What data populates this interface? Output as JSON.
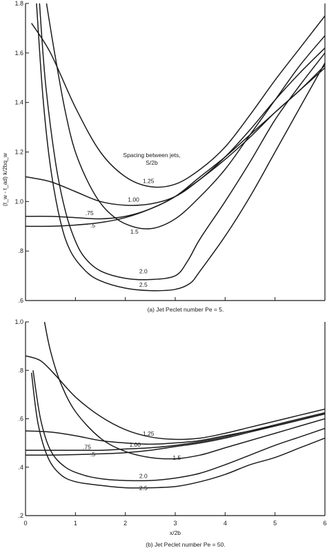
{
  "chart_data": [
    {
      "type": "line",
      "title": "",
      "caption": "(a) Jet Peclet number  Pe = 5.",
      "xlabel": "",
      "ylabel": "(t_w - t_ad) k/2bq_w",
      "xlim": [
        0,
        6
      ],
      "ylim": [
        0.6,
        1.8
      ],
      "x_ticks": [
        0,
        1,
        2,
        3,
        4,
        5,
        6
      ],
      "y_ticks": [
        0.6,
        0.8,
        1.0,
        1.2,
        1.4,
        1.6,
        1.8
      ],
      "y_tick_labels": [
        ".6",
        ".8",
        "1.0",
        "1.2",
        "1.4",
        "1.6",
        "1.8"
      ],
      "legend_title": [
        "Spacing between jets,",
        "S/2b"
      ],
      "series": [
        {
          "name": "1.25",
          "x": [
            0.12,
            0.5,
            1.0,
            1.5,
            2.0,
            2.5,
            3.0,
            3.5,
            4.0,
            4.5,
            5.0,
            5.5,
            6.0
          ],
          "y": [
            1.72,
            1.6,
            1.38,
            1.2,
            1.1,
            1.06,
            1.07,
            1.13,
            1.22,
            1.35,
            1.49,
            1.62,
            1.75
          ]
        },
        {
          "name": "1.00",
          "x": [
            0.0,
            0.5,
            1.0,
            1.5,
            2.0,
            2.5,
            3.0,
            3.5,
            4.0,
            4.5,
            5.0,
            5.5,
            6.0
          ],
          "y": [
            1.1,
            1.08,
            1.04,
            1.0,
            0.985,
            0.99,
            1.02,
            1.09,
            1.18,
            1.29,
            1.41,
            1.52,
            1.62
          ]
        },
        {
          "name": ".75",
          "x": [
            0.0,
            0.5,
            1.0,
            1.5,
            2.0,
            2.5,
            3.0,
            3.5,
            4.0,
            4.5,
            5.0,
            5.5,
            6.0
          ],
          "y": [
            0.94,
            0.94,
            0.935,
            0.93,
            0.94,
            0.97,
            1.02,
            1.09,
            1.17,
            1.26,
            1.36,
            1.45,
            1.55
          ]
        },
        {
          "name": ".5",
          "x": [
            0.0,
            0.5,
            1.0,
            1.5,
            2.0,
            2.5,
            3.0,
            3.5,
            4.0,
            4.5,
            5.0,
            5.5,
            6.0
          ],
          "y": [
            0.9,
            0.9,
            0.905,
            0.915,
            0.935,
            0.97,
            1.02,
            1.1,
            1.18,
            1.27,
            1.36,
            1.45,
            1.54
          ]
        },
        {
          "name": "1.5",
          "x": [
            0.42,
            0.6,
            0.8,
            1.0,
            1.3,
            1.6,
            2.0,
            2.5,
            3.0,
            3.5,
            4.0,
            4.5,
            5.0,
            5.5,
            6.0
          ],
          "y": [
            1.8,
            1.58,
            1.36,
            1.2,
            1.06,
            0.97,
            0.91,
            0.89,
            0.93,
            1.02,
            1.13,
            1.27,
            1.41,
            1.55,
            1.67
          ]
        },
        {
          "name": "2.0",
          "x": [
            0.28,
            0.4,
            0.6,
            0.8,
            1.0,
            1.2,
            1.5,
            2.0,
            2.5,
            3.0,
            3.25,
            3.5,
            4.0,
            4.5,
            5.0,
            5.5,
            6.0
          ],
          "y": [
            1.8,
            1.48,
            1.16,
            0.96,
            0.84,
            0.77,
            0.72,
            0.69,
            0.685,
            0.7,
            0.76,
            0.85,
            1.0,
            1.16,
            1.33,
            1.47,
            1.6
          ]
        },
        {
          "name": "2.5",
          "x": [
            0.22,
            0.35,
            0.5,
            0.7,
            0.9,
            1.2,
            1.5,
            2.0,
            2.5,
            3.0,
            3.3,
            3.5,
            4.0,
            4.5,
            5.0,
            5.5,
            6.0
          ],
          "y": [
            1.8,
            1.42,
            1.14,
            0.92,
            0.8,
            0.72,
            0.68,
            0.65,
            0.64,
            0.645,
            0.67,
            0.72,
            0.86,
            1.02,
            1.2,
            1.38,
            1.56
          ]
        }
      ],
      "series_label_positions": [
        {
          "name": "1.25",
          "x": 2.35,
          "y": 1.075
        },
        {
          "name": "1.00",
          "x": 2.05,
          "y": 1.0
        },
        {
          "name": ".75",
          "x": 1.2,
          "y": 0.945
        },
        {
          "name": ".5",
          "x": 1.3,
          "y": 0.895
        },
        {
          "name": "1.5",
          "x": 2.1,
          "y": 0.87
        },
        {
          "name": "2.0",
          "x": 2.28,
          "y": 0.71
        },
        {
          "name": "2.5",
          "x": 2.28,
          "y": 0.655
        }
      ]
    },
    {
      "type": "line",
      "title": "",
      "caption": "(b) Jet Peclet number  Pe = 50.",
      "xlabel": "x/2b",
      "ylabel": "",
      "xlim": [
        0,
        6
      ],
      "ylim": [
        0.2,
        1.0
      ],
      "x_ticks": [
        0,
        1,
        2,
        3,
        4,
        5,
        6
      ],
      "x_tick_labels": [
        "0",
        "1",
        "2",
        "3",
        "4",
        "5",
        "6"
      ],
      "y_ticks": [
        0.2,
        0.4,
        0.6,
        0.8,
        1.0
      ],
      "y_tick_labels": [
        ".2",
        ".4",
        ".6",
        ".8",
        "1.0"
      ],
      "series": [
        {
          "name": "1.25",
          "x": [
            0.0,
            0.3,
            0.6,
            1.0,
            1.5,
            2.0,
            2.5,
            3.0,
            3.5,
            4.0,
            4.5,
            5.0,
            5.5,
            6.0
          ],
          "y": [
            0.86,
            0.84,
            0.78,
            0.69,
            0.61,
            0.555,
            0.525,
            0.515,
            0.52,
            0.54,
            0.565,
            0.59,
            0.615,
            0.64
          ]
        },
        {
          "name": "1.00",
          "x": [
            0.0,
            0.5,
            1.0,
            1.5,
            2.0,
            2.5,
            3.0,
            3.5,
            4.0,
            4.5,
            5.0,
            5.5,
            6.0
          ],
          "y": [
            0.55,
            0.545,
            0.53,
            0.51,
            0.5,
            0.495,
            0.5,
            0.51,
            0.53,
            0.55,
            0.575,
            0.6,
            0.625
          ]
        },
        {
          "name": ".75",
          "x": [
            0.0,
            0.5,
            1.0,
            1.5,
            2.0,
            2.5,
            3.0,
            3.5,
            4.0,
            4.5,
            5.0,
            5.5,
            6.0
          ],
          "y": [
            0.47,
            0.47,
            0.47,
            0.47,
            0.475,
            0.48,
            0.49,
            0.505,
            0.525,
            0.55,
            0.57,
            0.595,
            0.62
          ]
        },
        {
          "name": ".5",
          "x": [
            0.0,
            0.5,
            1.0,
            1.5,
            2.0,
            2.5,
            3.0,
            3.5,
            4.0,
            4.5,
            5.0,
            5.5,
            6.0
          ],
          "y": [
            0.45,
            0.45,
            0.452,
            0.455,
            0.46,
            0.47,
            0.485,
            0.5,
            0.52,
            0.545,
            0.57,
            0.595,
            0.62
          ]
        },
        {
          "name": "1.5",
          "x": [
            0.38,
            0.5,
            0.7,
            1.0,
            1.5,
            2.0,
            2.5,
            3.0,
            3.5,
            4.0,
            4.5,
            5.0,
            5.5,
            6.0
          ],
          "y": [
            1.0,
            0.88,
            0.75,
            0.63,
            0.52,
            0.465,
            0.44,
            0.435,
            0.45,
            0.48,
            0.51,
            0.54,
            0.57,
            0.6
          ]
        },
        {
          "name": "2.0",
          "x": [
            0.15,
            0.3,
            0.5,
            0.8,
            1.2,
            1.6,
            2.0,
            2.5,
            3.0,
            3.5,
            4.0,
            4.5,
            5.0,
            5.5,
            6.0
          ],
          "y": [
            0.8,
            0.6,
            0.47,
            0.4,
            0.365,
            0.35,
            0.345,
            0.345,
            0.355,
            0.375,
            0.41,
            0.45,
            0.49,
            0.525,
            0.56
          ]
        },
        {
          "name": "2.5",
          "x": [
            0.12,
            0.25,
            0.45,
            0.7,
            1.0,
            1.5,
            2.0,
            2.5,
            3.0,
            3.5,
            4.0,
            4.5,
            5.0,
            5.5,
            6.0
          ],
          "y": [
            0.79,
            0.58,
            0.44,
            0.37,
            0.34,
            0.325,
            0.315,
            0.315,
            0.32,
            0.34,
            0.37,
            0.41,
            0.44,
            0.48,
            0.52
          ]
        }
      ],
      "series_label_positions": [
        {
          "name": "1.25",
          "x": 2.35,
          "y": 0.53
        },
        {
          "name": "1.00",
          "x": 2.08,
          "y": 0.485
        },
        {
          "name": ".75",
          "x": 1.15,
          "y": 0.475
        },
        {
          "name": ".5",
          "x": 1.3,
          "y": 0.445
        },
        {
          "name": "1.5",
          "x": 2.95,
          "y": 0.43
        },
        {
          "name": "2.0",
          "x": 2.28,
          "y": 0.355
        },
        {
          "name": "2.5",
          "x": 2.28,
          "y": 0.305
        }
      ]
    }
  ]
}
